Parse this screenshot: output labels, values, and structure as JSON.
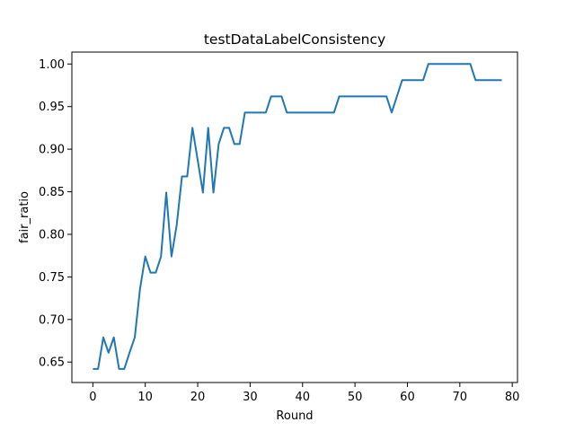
{
  "chart_data": {
    "type": "line",
    "title": "testDataLabelConsistency",
    "xlabel": "Round",
    "ylabel": "fair_ratio",
    "xlim": [
      -4,
      81
    ],
    "ylim": [
      0.626,
      1.014
    ],
    "xticks": [
      0,
      10,
      20,
      30,
      40,
      50,
      60,
      70,
      80
    ],
    "xtick_labels": [
      "0",
      "10",
      "20",
      "30",
      "40",
      "50",
      "60",
      "70",
      "80"
    ],
    "yticks": [
      0.65,
      0.7,
      0.75,
      0.8,
      0.85,
      0.9,
      0.95,
      1.0
    ],
    "ytick_labels": [
      "0.65",
      "0.70",
      "0.75",
      "0.80",
      "0.85",
      "0.90",
      "0.95",
      "1.00"
    ],
    "grid": false,
    "legend": "none",
    "series": [
      {
        "color": "#1f77b4",
        "x": [
          0,
          1,
          2,
          3,
          4,
          5,
          6,
          7,
          8,
          9,
          10,
          11,
          12,
          13,
          14,
          15,
          16,
          17,
          18,
          19,
          20,
          21,
          22,
          23,
          24,
          25,
          26,
          27,
          28,
          29,
          30,
          31,
          32,
          33,
          34,
          35,
          36,
          37,
          38,
          39,
          40,
          41,
          42,
          43,
          44,
          45,
          46,
          47,
          48,
          49,
          50,
          51,
          52,
          53,
          54,
          55,
          56,
          57,
          58,
          59,
          60,
          61,
          62,
          63,
          64,
          65,
          66,
          67,
          68,
          69,
          70,
          71,
          72,
          73,
          74,
          75,
          76,
          77,
          78
        ],
        "y": [
          0.642,
          0.642,
          0.679,
          0.661,
          0.679,
          0.642,
          0.642,
          0.661,
          0.679,
          0.736,
          0.774,
          0.755,
          0.755,
          0.774,
          0.849,
          0.774,
          0.811,
          0.868,
          0.868,
          0.925,
          0.887,
          0.849,
          0.925,
          0.849,
          0.906,
          0.925,
          0.925,
          0.906,
          0.906,
          0.943,
          0.943,
          0.943,
          0.943,
          0.943,
          0.962,
          0.962,
          0.962,
          0.943,
          0.943,
          0.943,
          0.943,
          0.943,
          0.943,
          0.943,
          0.943,
          0.943,
          0.943,
          0.962,
          0.962,
          0.962,
          0.962,
          0.962,
          0.962,
          0.962,
          0.962,
          0.962,
          0.962,
          0.943,
          0.962,
          0.981,
          0.981,
          0.981,
          0.981,
          0.981,
          1.0,
          1.0,
          1.0,
          1.0,
          1.0,
          1.0,
          1.0,
          1.0,
          1.0,
          0.981,
          0.981,
          0.981,
          0.981,
          0.981,
          0.981
        ]
      }
    ]
  }
}
